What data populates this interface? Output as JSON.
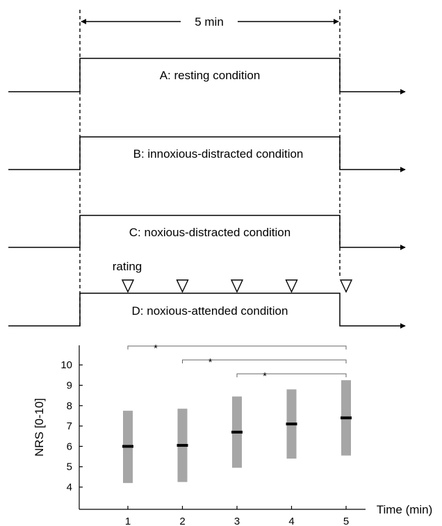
{
  "timing": {
    "duration_label": "5 min"
  },
  "conditions": [
    {
      "label": "A: resting condition"
    },
    {
      "label": "B: innoxious-distracted condition"
    },
    {
      "label": "C: noxious-distracted condition"
    },
    {
      "label": "D: noxious-attended condition"
    }
  ],
  "rating_label": "rating",
  "chart_data": {
    "type": "box",
    "xlabel": "Time (min)",
    "ylabel": "NRS [0-10]",
    "ylim": [
      3.2,
      10.6
    ],
    "yticks": [
      "4",
      "5",
      "6",
      "7",
      "8",
      "9",
      "10"
    ],
    "categories": [
      "1",
      "2",
      "3",
      "4",
      "5"
    ],
    "x": [
      1,
      2,
      3,
      4,
      5
    ],
    "median": [
      6.0,
      6.05,
      6.7,
      7.1,
      7.4
    ],
    "lower": [
      4.2,
      4.25,
      4.95,
      5.4,
      5.55
    ],
    "upper": [
      7.75,
      7.85,
      8.45,
      8.8,
      9.25
    ],
    "significance": [
      {
        "from": "1",
        "to": "5",
        "label": "*"
      },
      {
        "from": "2",
        "to": "5",
        "label": "*"
      },
      {
        "from": "3",
        "to": "5",
        "label": "*"
      }
    ]
  }
}
